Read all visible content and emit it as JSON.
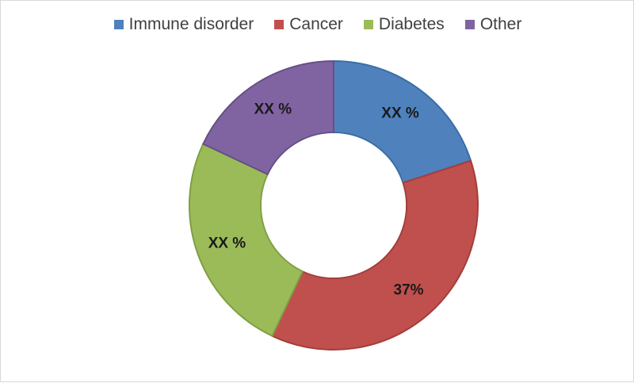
{
  "chart_data": {
    "type": "pie",
    "donut": true,
    "legend_position": "top",
    "series": [
      {
        "name": "Immune disorder",
        "value": 20,
        "label": "XX %",
        "color": "#4f81bd",
        "edge": "#3a6ea5"
      },
      {
        "name": "Cancer",
        "value": 37,
        "label": "37%",
        "color": "#c0504d",
        "edge": "#a33e3b"
      },
      {
        "name": "Diabetes",
        "value": 25,
        "label": "XX %",
        "color": "#9bbb59",
        "edge": "#7f9f43"
      },
      {
        "name": "Other",
        "value": 18,
        "label": "XX %",
        "color": "#8064a2",
        "edge": "#664f86"
      }
    ]
  }
}
